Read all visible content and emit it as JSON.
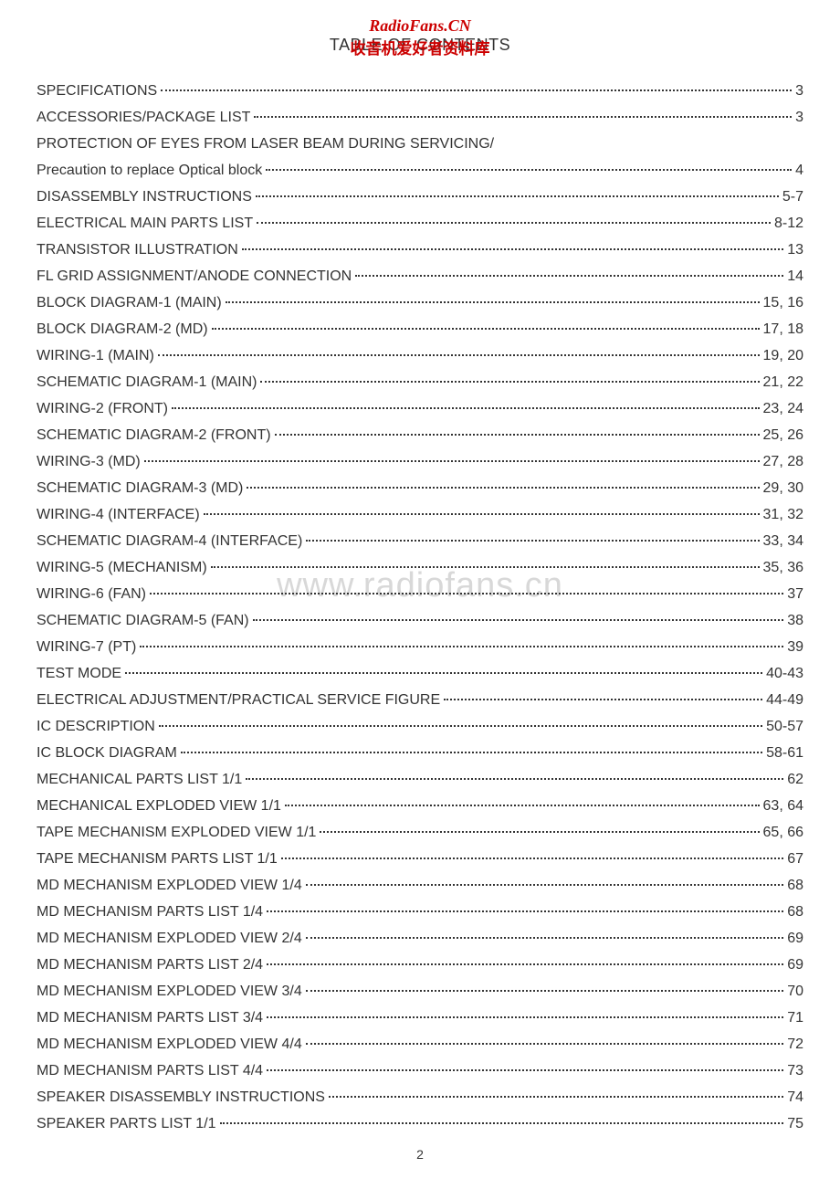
{
  "header": {
    "watermark_top": "RadioFans.CN",
    "title": "TABLE OF CONTENTS",
    "title_overlay": "收音机爱好者资料库"
  },
  "watermark_center": "www.radiofans.cn",
  "page_number": "2",
  "toc": {
    "entries": [
      {
        "label": "SPECIFICATIONS",
        "page": "3",
        "dots": true
      },
      {
        "label": "ACCESSORIES/PACKAGE LIST",
        "page": "3",
        "dots": true
      },
      {
        "label": "PROTECTION OF EYES FROM LASER BEAM DURING SERVICING/",
        "page": "",
        "dots": false
      },
      {
        "label": "Precaution to replace Optical block",
        "page": "4",
        "dots": true
      },
      {
        "label": "DISASSEMBLY INSTRUCTIONS",
        "page": "5-7",
        "dots": true
      },
      {
        "label": "ELECTRICAL MAIN PARTS LIST",
        "page": "8-12",
        "dots": true
      },
      {
        "label": "TRANSISTOR ILLUSTRATION",
        "page": "13",
        "dots": true
      },
      {
        "label": "FL GRID ASSIGNMENT/ANODE CONNECTION",
        "page": "14",
        "dots": true
      },
      {
        "label": "BLOCK DIAGRAM-1 (MAIN)",
        "page": "15, 16",
        "dots": true
      },
      {
        "label": "BLOCK DIAGRAM-2 (MD)",
        "page": "17, 18",
        "dots": true
      },
      {
        "label": "WIRING-1 (MAIN)",
        "page": "19, 20",
        "dots": true
      },
      {
        "label": "SCHEMATIC DIAGRAM-1 (MAIN)",
        "page": "21, 22",
        "dots": true
      },
      {
        "label": "WIRING-2 (FRONT)",
        "page": "23, 24",
        "dots": true
      },
      {
        "label": "SCHEMATIC DIAGRAM-2 (FRONT)",
        "page": "25, 26",
        "dots": true
      },
      {
        "label": "WIRING-3 (MD)",
        "page": "27, 28",
        "dots": true
      },
      {
        "label": "SCHEMATIC DIAGRAM-3 (MD)",
        "page": "29, 30",
        "dots": true
      },
      {
        "label": "WIRING-4 (INTERFACE)",
        "page": "31, 32",
        "dots": true
      },
      {
        "label": "SCHEMATIC DIAGRAM-4 (INTERFACE)",
        "page": "33, 34",
        "dots": true
      },
      {
        "label": "WIRING-5 (MECHANISM)",
        "page": "35, 36",
        "dots": true
      },
      {
        "label": "WIRING-6 (FAN)",
        "page": "37",
        "dots": true
      },
      {
        "label": "SCHEMATIC DIAGRAM-5 (FAN)",
        "page": "38",
        "dots": true
      },
      {
        "label": "WIRING-7 (PT)",
        "page": "39",
        "dots": true
      },
      {
        "label": "TEST MODE",
        "page": "40-43",
        "dots": true
      },
      {
        "label": "ELECTRICAL ADJUSTMENT/PRACTICAL SERVICE FIGURE",
        "page": "44-49",
        "dots": true
      },
      {
        "label": "IC DESCRIPTION",
        "page": "50-57",
        "dots": true
      },
      {
        "label": "IC BLOCK DIAGRAM",
        "page": "58-61",
        "dots": true
      },
      {
        "label": "MECHANICAL PARTS LIST 1/1",
        "page": "62",
        "dots": true
      },
      {
        "label": "MECHANICAL EXPLODED VIEW 1/1",
        "page": "63, 64",
        "dots": true
      },
      {
        "label": "TAPE MECHANISM EXPLODED VIEW 1/1",
        "page": "65, 66",
        "dots": true
      },
      {
        "label": "TAPE MECHANISM PARTS LIST 1/1",
        "page": "67",
        "dots": true
      },
      {
        "label": "MD MECHANISM EXPLODED VIEW 1/4",
        "page": "68",
        "dots": true
      },
      {
        "label": "MD MECHANISM PARTS LIST 1/4",
        "page": "68",
        "dots": true
      },
      {
        "label": "MD MECHANISM EXPLODED VIEW 2/4",
        "page": "69",
        "dots": true
      },
      {
        "label": "MD MECHANISM PARTS LIST 2/4",
        "page": "69",
        "dots": true
      },
      {
        "label": "MD MECHANISM EXPLODED VIEW 3/4",
        "page": "70",
        "dots": true
      },
      {
        "label": "MD MECHANISM PARTS LIST 3/4",
        "page": "71",
        "dots": true
      },
      {
        "label": "MD MECHANISM EXPLODED VIEW 4/4",
        "page": "72",
        "dots": true
      },
      {
        "label": "MD MECHANISM PARTS LIST 4/4",
        "page": "73",
        "dots": true
      },
      {
        "label": "SPEAKER DISASSEMBLY INSTRUCTIONS",
        "page": "74",
        "dots": true
      },
      {
        "label": "SPEAKER PARTS LIST 1/1",
        "page": "75",
        "dots": true
      }
    ]
  },
  "styles": {
    "body_bg": "#ffffff",
    "text_color": "#333333",
    "accent_color": "#cc0000",
    "watermark_color": "#d8d8d8",
    "font_size_body": 16,
    "font_size_title": 18,
    "font_size_watermark": 38,
    "line_height": 29
  }
}
